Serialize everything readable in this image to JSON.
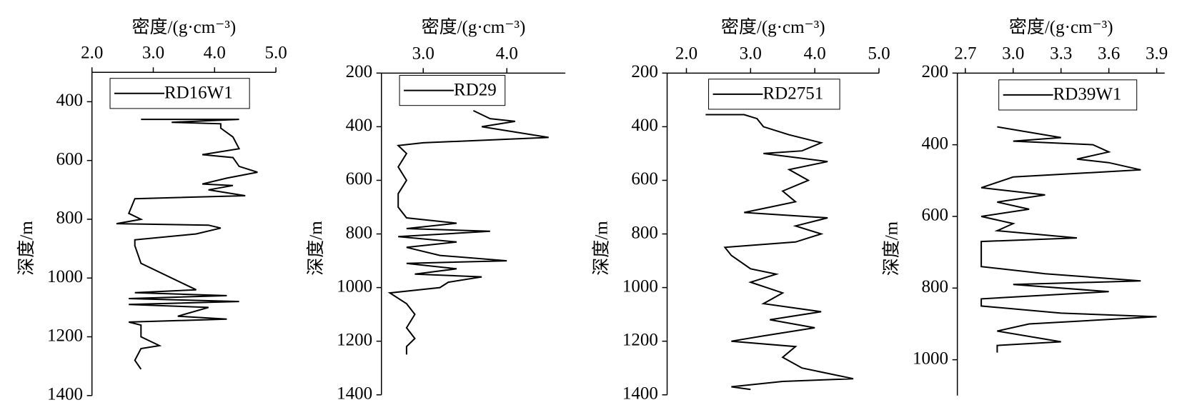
{
  "chart_data": [
    {
      "type": "line",
      "x_label": "密度/(g·cm⁻³)",
      "y_label": "深度/m",
      "reversed_y": true,
      "xlim": [
        2.0,
        5.0
      ],
      "xticks": [
        {
          "value": 2,
          "label": "2.0"
        },
        {
          "value": 3,
          "label": "3.0"
        },
        {
          "value": 4,
          "label": "4.0"
        },
        {
          "value": 5,
          "label": "5.0"
        }
      ],
      "ylim": [
        300,
        1400
      ],
      "yticks": [
        400,
        600,
        800,
        1000,
        1200,
        1400
      ],
      "y": [
        460,
        460,
        470,
        475,
        490,
        520,
        560,
        580,
        590,
        620,
        640,
        660,
        680,
        685,
        700,
        720,
        730,
        780,
        800,
        815,
        820,
        830,
        850,
        870,
        890,
        950,
        1040,
        1050,
        1060,
        1070,
        1080,
        1090,
        1100,
        1130,
        1140,
        1150,
        1160,
        1200,
        1230,
        1240,
        1280,
        1310
      ],
      "series": [
        {
          "name": "RD16W1",
          "color": "#000000",
          "values": [
            2.8,
            4.4,
            3.3,
            4.1,
            4.1,
            4.3,
            4.4,
            3.8,
            4.3,
            4.4,
            4.7,
            4.2,
            3.8,
            4.3,
            3.9,
            4.5,
            2.7,
            2.6,
            2.8,
            2.4,
            3.9,
            4.1,
            3.7,
            2.7,
            2.7,
            2.8,
            3.7,
            2.7,
            4.2,
            2.6,
            4.4,
            2.6,
            3.9,
            3.4,
            4.2,
            2.6,
            2.8,
            2.8,
            3.1,
            2.8,
            2.7,
            2.8
          ]
        }
      ]
    },
    {
      "type": "line",
      "x_label": "密度/(g·cm⁻³)",
      "y_label": "深度/m",
      "reversed_y": true,
      "xlim": [
        2.5,
        4.7
      ],
      "xticks": [
        {
          "value": 3,
          "label": "3.0"
        },
        {
          "value": 4,
          "label": "4.0"
        }
      ],
      "ylim": [
        200,
        1400
      ],
      "yticks": [
        200,
        400,
        600,
        800,
        1000,
        1200,
        1400
      ],
      "y": [
        340,
        370,
        380,
        400,
        420,
        440,
        460,
        470,
        500,
        550,
        600,
        650,
        700,
        740,
        760,
        780,
        790,
        810,
        830,
        850,
        880,
        900,
        910,
        930,
        950,
        960,
        980,
        1000,
        1020,
        1060,
        1100,
        1150,
        1190,
        1220,
        1250
      ],
      "series": [
        {
          "name": "RD29",
          "color": "#000000",
          "values": [
            3.6,
            3.8,
            4.1,
            3.7,
            4.1,
            4.5,
            3.0,
            2.7,
            2.8,
            2.7,
            2.8,
            2.7,
            2.7,
            2.8,
            3.4,
            2.8,
            3.8,
            2.7,
            3.4,
            2.8,
            3.2,
            4.0,
            2.8,
            3.4,
            2.9,
            3.7,
            3.3,
            3.2,
            2.6,
            2.8,
            2.9,
            2.8,
            2.9,
            2.8,
            2.8
          ]
        }
      ]
    },
    {
      "type": "line",
      "x_label": "密度/(g·cm⁻³)",
      "y_label": "深度/m",
      "reversed_y": true,
      "xlim": [
        1.7,
        5.0
      ],
      "xticks": [
        {
          "value": 2,
          "label": "2.0"
        },
        {
          "value": 3,
          "label": "3.0"
        },
        {
          "value": 4,
          "label": "4.0"
        },
        {
          "value": 5,
          "label": "5.0"
        }
      ],
      "ylim": [
        200,
        1400
      ],
      "yticks": [
        200,
        400,
        600,
        800,
        1000,
        1200,
        1400
      ],
      "y": [
        355,
        355,
        370,
        400,
        430,
        460,
        490,
        500,
        530,
        560,
        600,
        640,
        680,
        700,
        720,
        740,
        770,
        800,
        830,
        850,
        880,
        930,
        950,
        980,
        1020,
        1060,
        1090,
        1120,
        1150,
        1180,
        1200,
        1220,
        1260,
        1300,
        1340,
        1350,
        1370,
        1380
      ],
      "series": [
        {
          "name": "RD2751",
          "color": "#000000",
          "values": [
            2.3,
            2.9,
            3.1,
            3.2,
            3.6,
            4.1,
            3.8,
            3.2,
            4.2,
            3.6,
            3.9,
            3.5,
            3.7,
            3.3,
            2.9,
            4.2,
            3.7,
            4.1,
            3.7,
            2.6,
            2.7,
            3.0,
            3.4,
            3.0,
            3.5,
            3.2,
            4.1,
            3.3,
            4.0,
            3.2,
            2.7,
            3.7,
            3.5,
            3.8,
            4.6,
            3.5,
            2.7,
            3.0
          ]
        }
      ]
    },
    {
      "type": "line",
      "x_label": "密度/(g·cm⁻³)",
      "y_label": "深度/m",
      "reversed_y": true,
      "xlim": [
        2.65,
        3.95
      ],
      "xticks": [
        2.7,
        {
          "value": 3,
          "label": "3.0"
        },
        3.3,
        3.6,
        3.9
      ],
      "ylim": [
        200,
        1100
      ],
      "yticks": [
        200,
        400,
        600,
        800,
        1000
      ],
      "y": [
        350,
        380,
        390,
        400,
        420,
        440,
        450,
        470,
        490,
        520,
        540,
        560,
        580,
        600,
        620,
        640,
        660,
        670,
        700,
        740,
        760,
        780,
        790,
        810,
        830,
        850,
        870,
        880,
        900,
        920,
        950,
        960,
        980
      ],
      "series": [
        {
          "name": "RD39W1",
          "color": "#000000",
          "values": [
            2.9,
            3.3,
            3.0,
            3.5,
            3.6,
            3.4,
            3.6,
            3.8,
            3.0,
            2.8,
            3.2,
            2.9,
            3.1,
            2.8,
            3.0,
            2.9,
            3.4,
            2.8,
            2.8,
            2.8,
            3.2,
            3.8,
            3.0,
            3.6,
            2.8,
            2.8,
            3.3,
            3.9,
            3.1,
            2.9,
            3.3,
            2.9,
            2.9
          ]
        }
      ]
    }
  ]
}
